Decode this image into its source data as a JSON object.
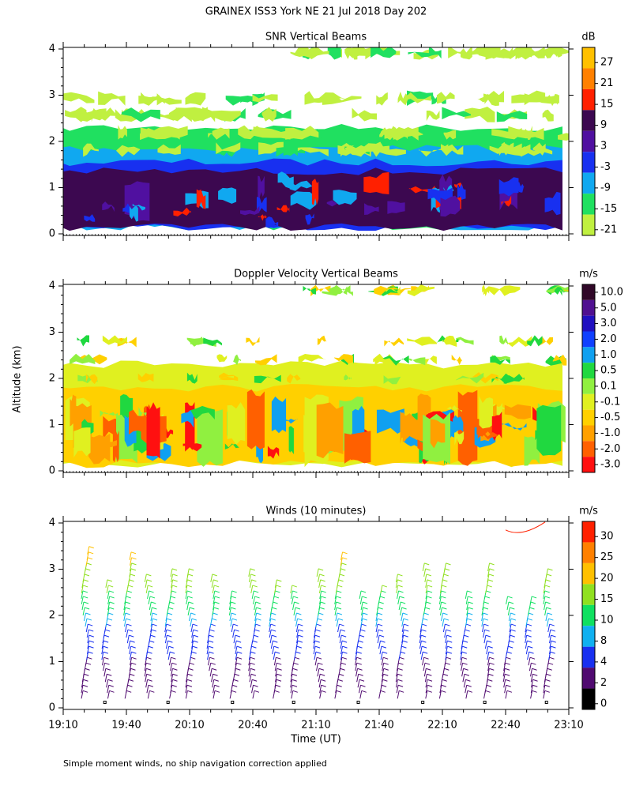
{
  "title": "GRAINEX ISS3 York NE  21 Jul 2018 Day 202",
  "ylabel": "Altitude (km)",
  "xlabel": "Time (UT)",
  "footnote": "Simple moment winds, no ship navigation correction applied",
  "chart_data": [
    {
      "type": "contour",
      "title": "SNR Vertical Beams",
      "ylim": [
        0,
        4
      ],
      "yticks": [
        0,
        1,
        2,
        3,
        4
      ],
      "xlim": [
        "19:10",
        "23:10"
      ],
      "colorbar": {
        "unit": "dB",
        "labels": [
          27,
          21,
          15,
          9,
          3,
          -3,
          -9,
          -15,
          -21
        ],
        "colors": [
          "#ffc000",
          "#ff8000",
          "#ff2000",
          "#3c0850",
          "#5010a0",
          "#1830f0",
          "#10a8f0",
          "#20e060",
          "#c0f040"
        ]
      }
    },
    {
      "type": "contour",
      "title": "Doppler Velocity Vertical Beams",
      "ylim": [
        0,
        4
      ],
      "yticks": [
        0,
        1,
        2,
        3,
        4
      ],
      "xlim": [
        "19:10",
        "23:10"
      ],
      "colorbar": {
        "unit": "m/s",
        "labels": [
          "10.0",
          "5.0",
          "3.0",
          "2.0",
          "1.0",
          "0.5",
          "0.1",
          "-0.1",
          "-0.5",
          "-1.0",
          "-2.0",
          "-3.0"
        ],
        "colors": [
          "#300828",
          "#501090",
          "#2010c0",
          "#1040ff",
          "#10a0f0",
          "#20d840",
          "#90f040",
          "#e0f020",
          "#ffd000",
          "#ffa000",
          "#ff6000",
          "#ff1010"
        ]
      }
    },
    {
      "type": "barbs",
      "title": "Winds (10 minutes)",
      "ylim": [
        0,
        4
      ],
      "yticks": [
        0,
        1,
        2,
        3,
        4
      ],
      "xlim": [
        "19:10",
        "23:10"
      ],
      "xticks": [
        "19:10",
        "19:40",
        "20:10",
        "20:40",
        "21:10",
        "21:40",
        "22:10",
        "22:40",
        "23:10"
      ],
      "colorbar": {
        "unit": "m/s",
        "labels": [
          30,
          25,
          20,
          15,
          10,
          8,
          4,
          2,
          0
        ],
        "colors": [
          "#ff2000",
          "#ff8000",
          "#ffc000",
          "#90e020",
          "#10e060",
          "#10b0f0",
          "#1830f0",
          "#500a70",
          "#000000"
        ]
      }
    }
  ]
}
